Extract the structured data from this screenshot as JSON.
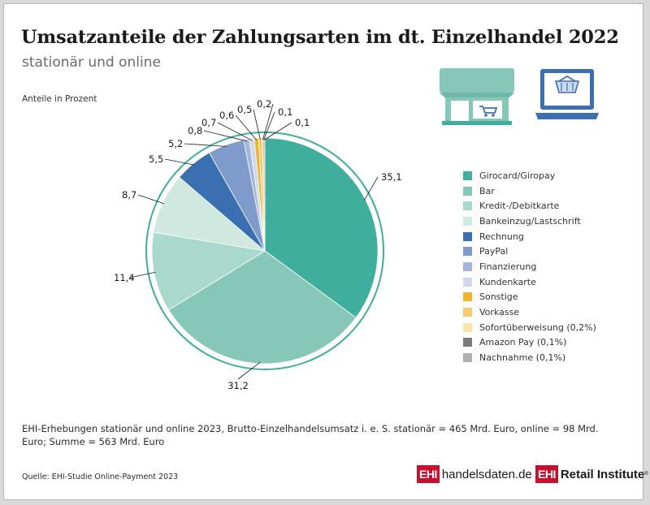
{
  "title": "Umsatzanteile der Zahlungsarten im dt. Einzelhandel 2022",
  "subtitle": "stationär und online",
  "unit_label": "Anteile in Prozent",
  "chart_data": {
    "type": "pie",
    "title": "Umsatzanteile der Zahlungsarten im dt. Einzelhandel 2022",
    "subtitle": "stationär und online",
    "unit": "Anteile in Prozent",
    "legend_position": "right",
    "slices": [
      {
        "label": "Girocard/Giropay",
        "value": 35.1,
        "value_label": "35,1",
        "color": "#3fae9c"
      },
      {
        "label": "Bar",
        "value": 31.2,
        "value_label": "31,2",
        "color": "#86c7b8"
      },
      {
        "label": "Kredit-/Debitkarte",
        "value": 11.4,
        "value_label": "11,4",
        "color": "#a9d8cc"
      },
      {
        "label": "Bankeinzug/Lastschrift",
        "value": 8.7,
        "value_label": "8,7",
        "color": "#cfe9e0"
      },
      {
        "label": "Rechnung",
        "value": 5.5,
        "value_label": "5,5",
        "color": "#3a6fb2"
      },
      {
        "label": "PayPal",
        "value": 5.2,
        "value_label": "5,2",
        "color": "#7f9bcb"
      },
      {
        "label": "Finanzierung",
        "value": 0.8,
        "value_label": "0,8",
        "color": "#a5b6d9"
      },
      {
        "label": "Kundenkarte",
        "value": 0.7,
        "value_label": "0,7",
        "color": "#cfd9ec"
      },
      {
        "label": "Sonstige",
        "value": 0.6,
        "value_label": "0,6",
        "color": "#f2b233"
      },
      {
        "label": "Vorkasse",
        "value": 0.5,
        "value_label": "0,5",
        "color": "#f7cc70"
      },
      {
        "label": "Sofortüberweisung (0,2%)",
        "value": 0.2,
        "value_label": "0,2",
        "color": "#fbe3ad"
      },
      {
        "label": "Amazon Pay (0,1%)",
        "value": 0.1,
        "value_label": "0,1",
        "color": "#7a7a7a"
      },
      {
        "label": "Nachnahme (0,1%)",
        "value": 0.1,
        "value_label": "0,1",
        "color": "#b0b0b0"
      }
    ]
  },
  "icons": {
    "store": "shop-icon",
    "online": "laptop-shopping-icon"
  },
  "colors": {
    "icon_teal": "#86c7b8",
    "icon_blue": "#3a6fb2",
    "ring": "#3fae9c"
  },
  "footnote": "EHI-Erhebungen stationär und online 2023, Brutto-Einzelhandelsumsatz i. e. S. stationär = 465 Mrd. Euro, online = 98 Mrd. Euro; Summe = 563 Mrd. Euro",
  "source": "Quelle: EHI-Studie Online-Payment 2023",
  "logos": {
    "handelsdaten": {
      "mark": "EHI",
      "text": "handelsdaten.de"
    },
    "retail": {
      "mark": "EHI",
      "text": "Retail Institute",
      "registered": "®"
    }
  }
}
